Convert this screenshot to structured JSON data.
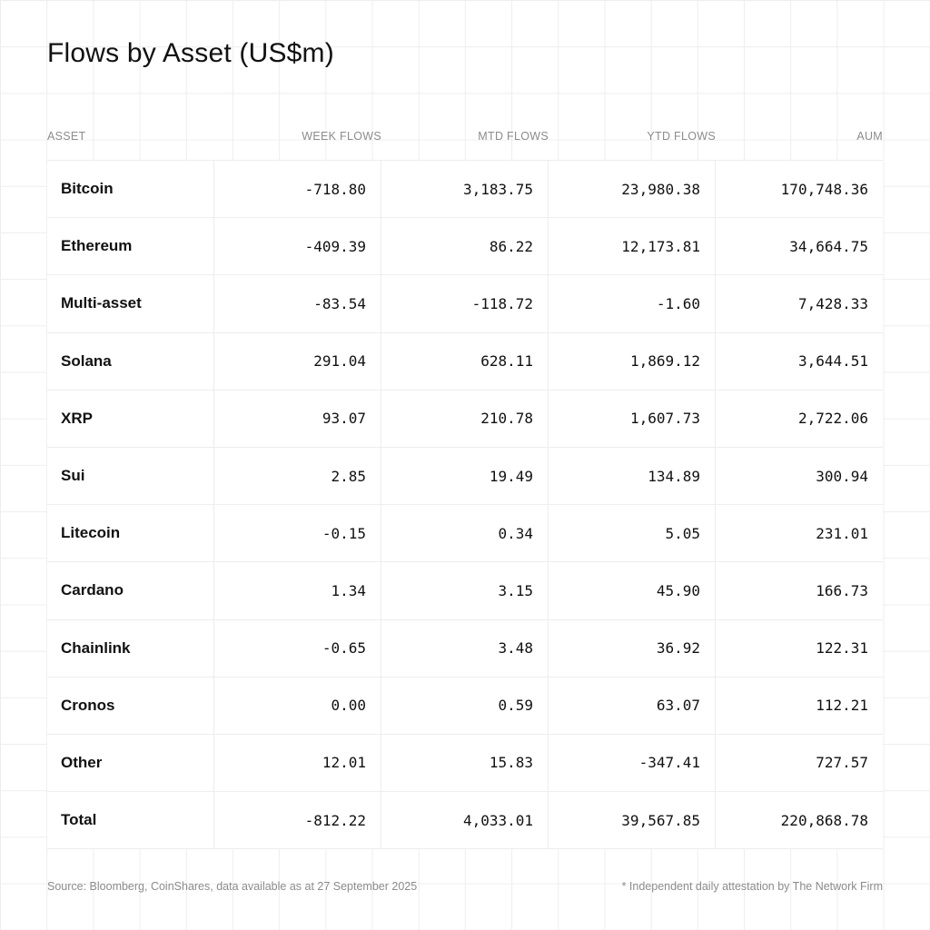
{
  "title": "Flows by Asset (US$m)",
  "columns": {
    "asset": "ASSET",
    "week": "WEEK FLOWS",
    "mtd": "MTD FLOWS",
    "ytd": "YTD FLOWS",
    "aum": "AUM"
  },
  "rows": [
    {
      "asset": "Bitcoin",
      "week": "-718.80",
      "mtd": "3,183.75",
      "ytd": "23,980.38",
      "aum": "170,748.36"
    },
    {
      "asset": "Ethereum",
      "week": "-409.39",
      "mtd": "86.22",
      "ytd": "12,173.81",
      "aum": "34,664.75"
    },
    {
      "asset": "Multi-asset",
      "week": "-83.54",
      "mtd": "-118.72",
      "ytd": "-1.60",
      "aum": "7,428.33"
    },
    {
      "asset": "Solana",
      "week": "291.04",
      "mtd": "628.11",
      "ytd": "1,869.12",
      "aum": "3,644.51"
    },
    {
      "asset": "XRP",
      "week": "93.07",
      "mtd": "210.78",
      "ytd": "1,607.73",
      "aum": "2,722.06"
    },
    {
      "asset": "Sui",
      "week": "2.85",
      "mtd": "19.49",
      "ytd": "134.89",
      "aum": "300.94"
    },
    {
      "asset": "Litecoin",
      "week": "-0.15",
      "mtd": "0.34",
      "ytd": "5.05",
      "aum": "231.01"
    },
    {
      "asset": "Cardano",
      "week": "1.34",
      "mtd": "3.15",
      "ytd": "45.90",
      "aum": "166.73"
    },
    {
      "asset": "Chainlink",
      "week": "-0.65",
      "mtd": "3.48",
      "ytd": "36.92",
      "aum": "122.31"
    },
    {
      "asset": "Cronos",
      "week": "0.00",
      "mtd": "0.59",
      "ytd": "63.07",
      "aum": "112.21"
    },
    {
      "asset": "Other",
      "week": "12.01",
      "mtd": "15.83",
      "ytd": "-347.41",
      "aum": "727.57"
    },
    {
      "asset": "Total",
      "week": "-812.22",
      "mtd": "4,033.01",
      "ytd": "39,567.85",
      "aum": "220,868.78"
    }
  ],
  "footer": {
    "source": "Source: Bloomberg, CoinShares, data available as at 27 September 2025",
    "note": "* Independent daily attestation by The Network Firm"
  },
  "chart_data": {
    "type": "table",
    "title": "Flows by Asset (US$m)",
    "columns": [
      "ASSET",
      "WEEK FLOWS",
      "MTD FLOWS",
      "YTD FLOWS",
      "AUM"
    ],
    "rows": [
      [
        "Bitcoin",
        -718.8,
        3183.75,
        23980.38,
        170748.36
      ],
      [
        "Ethereum",
        -409.39,
        86.22,
        12173.81,
        34664.75
      ],
      [
        "Multi-asset",
        -83.54,
        -118.72,
        -1.6,
        7428.33
      ],
      [
        "Solana",
        291.04,
        628.11,
        1869.12,
        3644.51
      ],
      [
        "XRP",
        93.07,
        210.78,
        1607.73,
        2722.06
      ],
      [
        "Sui",
        2.85,
        19.49,
        134.89,
        300.94
      ],
      [
        "Litecoin",
        -0.15,
        0.34,
        5.05,
        231.01
      ],
      [
        "Cardano",
        1.34,
        3.15,
        45.9,
        166.73
      ],
      [
        "Chainlink",
        -0.65,
        3.48,
        36.92,
        122.31
      ],
      [
        "Cronos",
        0.0,
        0.59,
        63.07,
        112.21
      ],
      [
        "Other",
        12.01,
        15.83,
        -347.41,
        727.57
      ],
      [
        "Total",
        -812.22,
        4033.01,
        39567.85,
        220868.78
      ]
    ]
  }
}
